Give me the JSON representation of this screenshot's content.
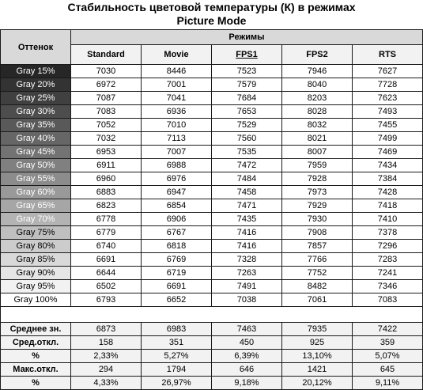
{
  "title_line1": "Стабильность цветовой температуры (К) в режимах",
  "title_line2": "Picture Mode",
  "header": {
    "shade": "Оттенок",
    "modes": "Режимы",
    "columns": [
      "Standard",
      "Movie",
      "FPS1",
      "FPS2",
      "RTS"
    ]
  },
  "rows": [
    {
      "label": "Gray 15%",
      "bg": "#262626",
      "fg": "#ffffff",
      "values": [
        "7030",
        "8446",
        "7523",
        "7946",
        "7627"
      ]
    },
    {
      "label": "Gray 20%",
      "bg": "#333333",
      "fg": "#ffffff",
      "values": [
        "6972",
        "7001",
        "7579",
        "8040",
        "7728"
      ]
    },
    {
      "label": "Gray 25%",
      "bg": "#404040",
      "fg": "#ffffff",
      "values": [
        "7087",
        "7041",
        "7684",
        "8203",
        "7623"
      ]
    },
    {
      "label": "Gray 30%",
      "bg": "#4d4d4d",
      "fg": "#ffffff",
      "values": [
        "7083",
        "6936",
        "7653",
        "8028",
        "7493"
      ]
    },
    {
      "label": "Gray 35%",
      "bg": "#595959",
      "fg": "#ffffff",
      "values": [
        "7052",
        "7010",
        "7529",
        "8032",
        "7455"
      ]
    },
    {
      "label": "Gray 40%",
      "bg": "#666666",
      "fg": "#ffffff",
      "values": [
        "7032",
        "7113",
        "7560",
        "8021",
        "7499"
      ]
    },
    {
      "label": "Gray 45%",
      "bg": "#737373",
      "fg": "#ffffff",
      "values": [
        "6953",
        "7007",
        "7535",
        "8007",
        "7469"
      ]
    },
    {
      "label": "Gray 50%",
      "bg": "#808080",
      "fg": "#ffffff",
      "values": [
        "6911",
        "6988",
        "7472",
        "7959",
        "7434"
      ]
    },
    {
      "label": "Gray 55%",
      "bg": "#8c8c8c",
      "fg": "#ffffff",
      "values": [
        "6960",
        "6976",
        "7484",
        "7928",
        "7384"
      ]
    },
    {
      "label": "Gray 60%",
      "bg": "#999999",
      "fg": "#ffffff",
      "values": [
        "6883",
        "6947",
        "7458",
        "7973",
        "7428"
      ]
    },
    {
      "label": "Gray 65%",
      "bg": "#a6a6a6",
      "fg": "#ffffff",
      "values": [
        "6823",
        "6854",
        "7471",
        "7929",
        "7418"
      ]
    },
    {
      "label": "Gray 70%",
      "bg": "#b3b3b3",
      "fg": "#ffffff",
      "values": [
        "6778",
        "6906",
        "7435",
        "7930",
        "7410"
      ]
    },
    {
      "label": "Gray 75%",
      "bg": "#bfbfbf",
      "fg": "#000000",
      "values": [
        "6779",
        "6767",
        "7416",
        "7908",
        "7378"
      ]
    },
    {
      "label": "Gray 80%",
      "bg": "#cccccc",
      "fg": "#000000",
      "values": [
        "6740",
        "6818",
        "7416",
        "7857",
        "7296"
      ]
    },
    {
      "label": "Gray 85%",
      "bg": "#d9d9d9",
      "fg": "#000000",
      "values": [
        "6691",
        "6769",
        "7328",
        "7766",
        "7283"
      ]
    },
    {
      "label": "Gray 90%",
      "bg": "#e6e6e6",
      "fg": "#000000",
      "values": [
        "6644",
        "6719",
        "7263",
        "7752",
        "7241"
      ]
    },
    {
      "label": "Gray 95%",
      "bg": "#f2f2f2",
      "fg": "#000000",
      "values": [
        "6502",
        "6691",
        "7491",
        "8482",
        "7346"
      ]
    },
    {
      "label": "Gray 100%",
      "bg": "#ffffff",
      "fg": "#000000",
      "values": [
        "6793",
        "6652",
        "7038",
        "7061",
        "7083"
      ]
    }
  ],
  "stats": [
    {
      "label": "Среднее зн.",
      "values": [
        "6873",
        "6983",
        "7463",
        "7935",
        "7422"
      ]
    },
    {
      "label": "Сред.откл.",
      "values": [
        "158",
        "351",
        "450",
        "925",
        "359"
      ]
    },
    {
      "label": "%",
      "values": [
        "2,33%",
        "5,27%",
        "6,39%",
        "13,10%",
        "5,07%"
      ]
    },
    {
      "label": "Макс.откл.",
      "values": [
        "294",
        "1794",
        "646",
        "1421",
        "645"
      ]
    },
    {
      "label": "%",
      "values": [
        "4,33%",
        "26,97%",
        "9,18%",
        "20,12%",
        "9,11%"
      ]
    }
  ]
}
